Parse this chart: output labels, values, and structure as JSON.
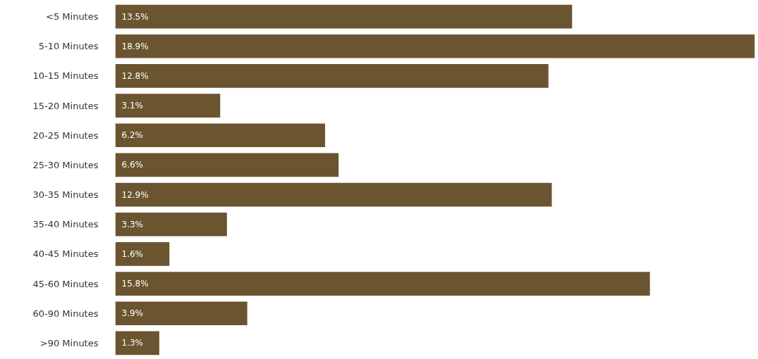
{
  "chart_data": {
    "type": "bar",
    "orientation": "horizontal",
    "categories": [
      "<5 Minutes",
      "5-10 Minutes",
      "10-15 Minutes",
      "15-20 Minutes",
      "20-25 Minutes",
      "25-30 Minutes",
      "30-35 Minutes",
      "35-40 Minutes",
      "40-45 Minutes",
      "45-60 Minutes",
      "60-90 Minutes",
      ">90 Minutes"
    ],
    "values": [
      13.5,
      18.9,
      12.8,
      3.1,
      6.2,
      6.6,
      12.9,
      3.3,
      1.6,
      15.8,
      3.9,
      1.3
    ],
    "value_labels": [
      "13.5%",
      "18.9%",
      "12.8%",
      "3.1%",
      "6.2%",
      "6.6%",
      "12.9%",
      "3.3%",
      "1.6%",
      "15.8%",
      "3.9%",
      "1.3%"
    ],
    "color": "#6b5530",
    "grid": false
  }
}
